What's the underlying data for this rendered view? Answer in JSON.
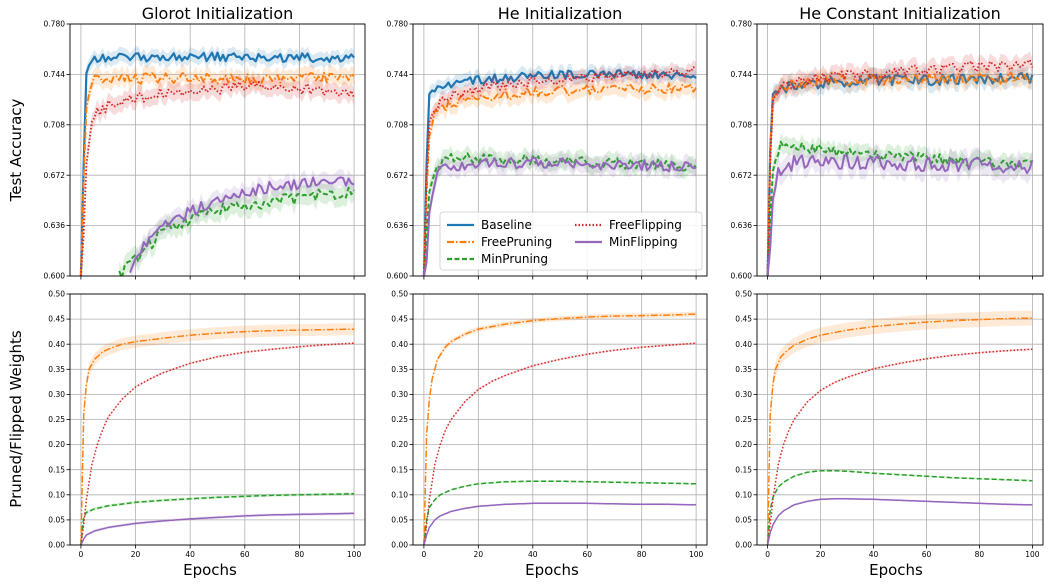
{
  "figure": {
    "xlabel": "Epochs",
    "ylabel_top": "Test Accuracy",
    "ylabel_bottom": "Pruned/Flipped Weights"
  },
  "legend": {
    "placement": "He Initialization top panel, lower-center",
    "entries": [
      {
        "name": "Baseline",
        "color": "#1f77b4",
        "style": "solid"
      },
      {
        "name": "FreePruning",
        "color": "#ff7f0e",
        "style": "dashdot"
      },
      {
        "name": "MinPruning",
        "color": "#2ca02c",
        "style": "dashed"
      },
      {
        "name": "FreeFlipping",
        "color": "#d62728",
        "style": "dotted"
      },
      {
        "name": "MinFlipping",
        "color": "#9467bd",
        "style": "solid"
      }
    ]
  },
  "chart_data": [
    {
      "type": "line",
      "panel": "top-left",
      "title": "Glorot Initialization",
      "xlim": [
        -4,
        104
      ],
      "ylim": [
        0.6,
        0.78
      ],
      "xticks": [
        "0",
        "20",
        "40",
        "60",
        "80",
        "100"
      ],
      "yticks": [
        "0.600",
        "0.636",
        "0.672",
        "0.708",
        "0.744",
        "0.780"
      ],
      "grid": true,
      "series": [
        {
          "name": "Baseline",
          "x": [
            0,
            1,
            2,
            4,
            10,
            20,
            40,
            60,
            80,
            100
          ],
          "y": [
            0.6,
            0.68,
            0.745,
            0.756,
            0.756,
            0.756,
            0.757,
            0.756,
            0.756,
            0.755
          ],
          "band": 0.005
        },
        {
          "name": "FreePruning",
          "x": [
            0,
            1,
            2,
            4,
            10,
            20,
            40,
            60,
            80,
            100
          ],
          "y": [
            0.6,
            0.67,
            0.72,
            0.74,
            0.741,
            0.741,
            0.741,
            0.741,
            0.741,
            0.742
          ],
          "band": 0.006
        },
        {
          "name": "MinPruning",
          "x": [
            14,
            18,
            22,
            30,
            40,
            50,
            60,
            70,
            80,
            90,
            100
          ],
          "y": [
            0.6,
            0.608,
            0.616,
            0.632,
            0.641,
            0.648,
            0.651,
            0.653,
            0.656,
            0.658,
            0.66
          ],
          "band": 0.007
        },
        {
          "name": "FreeFlipping",
          "x": [
            0,
            1,
            2,
            4,
            6,
            10,
            20,
            30,
            40,
            50,
            60,
            70,
            80,
            90,
            100
          ],
          "y": [
            0.6,
            0.63,
            0.68,
            0.71,
            0.717,
            0.722,
            0.727,
            0.731,
            0.733,
            0.734,
            0.735,
            0.735,
            0.734,
            0.732,
            0.731
          ],
          "band": 0.006
        },
        {
          "name": "MinFlipping",
          "x": [
            18,
            22,
            26,
            30,
            40,
            50,
            60,
            70,
            80,
            90,
            100
          ],
          "y": [
            0.605,
            0.618,
            0.628,
            0.636,
            0.646,
            0.654,
            0.66,
            0.664,
            0.666,
            0.667,
            0.668
          ],
          "band": 0.006
        }
      ]
    },
    {
      "type": "line",
      "panel": "top-middle",
      "title": "He Initialization",
      "xlim": [
        -4,
        104
      ],
      "ylim": [
        0.6,
        0.78
      ],
      "xticks": [
        "0",
        "20",
        "40",
        "60",
        "80",
        "100"
      ],
      "yticks": [
        "0.600",
        "0.636",
        "0.672",
        "0.708",
        "0.744",
        "0.780"
      ],
      "grid": true,
      "series": [
        {
          "name": "Baseline",
          "x": [
            0,
            1,
            2,
            4,
            10,
            20,
            40,
            60,
            80,
            100
          ],
          "y": [
            0.6,
            0.68,
            0.73,
            0.735,
            0.737,
            0.74,
            0.743,
            0.744,
            0.744,
            0.744
          ],
          "band": 0.005
        },
        {
          "name": "FreePruning",
          "x": [
            0,
            1,
            2,
            4,
            10,
            20,
            40,
            60,
            80,
            100
          ],
          "y": [
            0.6,
            0.66,
            0.7,
            0.716,
            0.724,
            0.728,
            0.731,
            0.733,
            0.734,
            0.733
          ],
          "band": 0.006
        },
        {
          "name": "MinPruning",
          "x": [
            0,
            1,
            2,
            4,
            6,
            10,
            20,
            40,
            60,
            80,
            100
          ],
          "y": [
            0.6,
            0.63,
            0.66,
            0.675,
            0.68,
            0.685,
            0.684,
            0.683,
            0.681,
            0.68,
            0.678
          ],
          "band": 0.006
        },
        {
          "name": "FreeFlipping",
          "x": [
            0,
            1,
            2,
            4,
            10,
            20,
            40,
            60,
            80,
            100
          ],
          "y": [
            0.6,
            0.67,
            0.71,
            0.72,
            0.729,
            0.734,
            0.739,
            0.742,
            0.744,
            0.746
          ],
          "band": 0.005
        },
        {
          "name": "MinFlipping",
          "x": [
            0,
            1,
            2,
            4,
            6,
            10,
            20,
            40,
            60,
            80,
            100
          ],
          "y": [
            0.6,
            0.61,
            0.645,
            0.668,
            0.675,
            0.678,
            0.68,
            0.681,
            0.68,
            0.679,
            0.678
          ],
          "band": 0.006
        }
      ]
    },
    {
      "type": "line",
      "panel": "top-right",
      "title": "He Constant Initialization",
      "xlim": [
        -4,
        104
      ],
      "ylim": [
        0.6,
        0.78
      ],
      "xticks": [
        "0",
        "20",
        "40",
        "60",
        "80",
        "100"
      ],
      "yticks": [
        "0.600",
        "0.636",
        "0.672",
        "0.708",
        "0.744",
        "0.780"
      ],
      "grid": true,
      "series": [
        {
          "name": "Baseline",
          "x": [
            0,
            1,
            2,
            4,
            10,
            20,
            40,
            60,
            80,
            100
          ],
          "y": [
            0.6,
            0.69,
            0.73,
            0.734,
            0.736,
            0.738,
            0.74,
            0.74,
            0.741,
            0.741
          ],
          "band": 0.006
        },
        {
          "name": "FreePruning",
          "x": [
            0,
            1,
            2,
            4,
            10,
            20,
            40,
            60,
            80,
            100
          ],
          "y": [
            0.6,
            0.69,
            0.727,
            0.733,
            0.737,
            0.739,
            0.74,
            0.741,
            0.741,
            0.741
          ],
          "band": 0.006
        },
        {
          "name": "MinPruning",
          "x": [
            0,
            1,
            2,
            4,
            6,
            10,
            20,
            40,
            60,
            80,
            100
          ],
          "y": [
            0.6,
            0.64,
            0.675,
            0.69,
            0.694,
            0.693,
            0.69,
            0.687,
            0.684,
            0.681,
            0.679
          ],
          "band": 0.006
        },
        {
          "name": "FreeFlipping",
          "x": [
            0,
            1,
            2,
            4,
            10,
            20,
            40,
            60,
            80,
            100
          ],
          "y": [
            0.6,
            0.68,
            0.725,
            0.734,
            0.738,
            0.742,
            0.745,
            0.748,
            0.75,
            0.751
          ],
          "band": 0.006
        },
        {
          "name": "MinFlipping",
          "x": [
            0,
            1,
            2,
            4,
            6,
            10,
            20,
            40,
            60,
            80,
            100
          ],
          "y": [
            0.6,
            0.62,
            0.655,
            0.672,
            0.678,
            0.681,
            0.682,
            0.681,
            0.68,
            0.679,
            0.678
          ],
          "band": 0.008
        }
      ]
    },
    {
      "type": "line",
      "panel": "bottom-left",
      "xlim": [
        -4,
        104
      ],
      "ylim": [
        0,
        0.5
      ],
      "xticks": [
        "0",
        "20",
        "40",
        "60",
        "80",
        "100"
      ],
      "yticks": [
        "0.00",
        "0.05",
        "0.10",
        "0.15",
        "0.20",
        "0.25",
        "0.30",
        "0.35",
        "0.40",
        "0.45",
        "0.50"
      ],
      "grid": true,
      "series": [
        {
          "name": "FreePruning",
          "x": [
            0,
            1,
            2,
            3,
            5,
            8,
            10,
            15,
            20,
            30,
            40,
            50,
            60,
            70,
            80,
            90,
            100
          ],
          "y": [
            0,
            0.26,
            0.32,
            0.35,
            0.37,
            0.385,
            0.39,
            0.4,
            0.405,
            0.412,
            0.418,
            0.422,
            0.425,
            0.427,
            0.428,
            0.429,
            0.43
          ],
          "band": 0.012
        },
        {
          "name": "MinPruning",
          "x": [
            0,
            1,
            2,
            5,
            10,
            20,
            30,
            40,
            50,
            60,
            70,
            80,
            90,
            100
          ],
          "y": [
            0,
            0.055,
            0.065,
            0.072,
            0.078,
            0.085,
            0.089,
            0.092,
            0.095,
            0.097,
            0.099,
            0.1,
            0.101,
            0.102
          ],
          "band": 0.003
        },
        {
          "name": "FreeFlipping",
          "x": [
            0,
            1,
            2,
            4,
            6,
            8,
            10,
            15,
            20,
            25,
            30,
            40,
            50,
            60,
            70,
            80,
            90,
            100
          ],
          "y": [
            0,
            0.04,
            0.09,
            0.16,
            0.2,
            0.23,
            0.255,
            0.29,
            0.315,
            0.33,
            0.343,
            0.362,
            0.375,
            0.384,
            0.39,
            0.395,
            0.399,
            0.402
          ],
          "band": 0.002
        },
        {
          "name": "MinFlipping",
          "x": [
            0,
            1,
            2,
            5,
            10,
            20,
            30,
            40,
            50,
            60,
            70,
            80,
            90,
            100
          ],
          "y": [
            0,
            0.012,
            0.02,
            0.028,
            0.035,
            0.043,
            0.048,
            0.052,
            0.055,
            0.058,
            0.06,
            0.061,
            0.062,
            0.063
          ],
          "band": 0.003
        }
      ]
    },
    {
      "type": "line",
      "panel": "bottom-middle",
      "xlim": [
        -4,
        104
      ],
      "ylim": [
        0,
        0.5
      ],
      "xticks": [
        "0",
        "20",
        "40",
        "60",
        "80",
        "100"
      ],
      "yticks": [
        "0.00",
        "0.05",
        "0.10",
        "0.15",
        "0.20",
        "0.25",
        "0.30",
        "0.35",
        "0.40",
        "0.45",
        "0.50"
      ],
      "grid": true,
      "series": [
        {
          "name": "FreePruning",
          "x": [
            0,
            1,
            2,
            3,
            5,
            8,
            10,
            15,
            20,
            30,
            40,
            50,
            60,
            70,
            80,
            90,
            100
          ],
          "y": [
            0,
            0.22,
            0.29,
            0.33,
            0.37,
            0.395,
            0.405,
            0.42,
            0.43,
            0.44,
            0.447,
            0.451,
            0.454,
            0.456,
            0.457,
            0.458,
            0.46
          ],
          "band": 0.005
        },
        {
          "name": "MinPruning",
          "x": [
            0,
            1,
            2,
            4,
            6,
            10,
            15,
            20,
            30,
            40,
            50,
            60,
            70,
            80,
            90,
            100
          ],
          "y": [
            0,
            0.05,
            0.075,
            0.09,
            0.1,
            0.11,
            0.117,
            0.122,
            0.126,
            0.127,
            0.127,
            0.126,
            0.125,
            0.124,
            0.123,
            0.122
          ],
          "band": 0.002
        },
        {
          "name": "FreeFlipping",
          "x": [
            0,
            1,
            2,
            4,
            6,
            8,
            10,
            15,
            20,
            25,
            30,
            40,
            50,
            60,
            70,
            80,
            90,
            100
          ],
          "y": [
            0,
            0.04,
            0.09,
            0.16,
            0.2,
            0.23,
            0.25,
            0.285,
            0.31,
            0.326,
            0.338,
            0.357,
            0.37,
            0.38,
            0.388,
            0.394,
            0.398,
            0.402
          ],
          "band": 0.002
        },
        {
          "name": "MinFlipping",
          "x": [
            0,
            1,
            2,
            4,
            6,
            10,
            15,
            20,
            30,
            40,
            50,
            60,
            70,
            80,
            90,
            100
          ],
          "y": [
            0,
            0.02,
            0.035,
            0.05,
            0.058,
            0.067,
            0.073,
            0.077,
            0.081,
            0.083,
            0.083,
            0.083,
            0.082,
            0.081,
            0.081,
            0.08
          ],
          "band": 0.002
        }
      ]
    },
    {
      "type": "line",
      "panel": "bottom-right",
      "xlim": [
        -4,
        104
      ],
      "ylim": [
        0,
        0.5
      ],
      "xticks": [
        "0",
        "20",
        "40",
        "60",
        "80",
        "100"
      ],
      "yticks": [
        "0.00",
        "0.05",
        "0.10",
        "0.15",
        "0.20",
        "0.25",
        "0.30",
        "0.35",
        "0.40",
        "0.45",
        "0.50"
      ],
      "grid": true,
      "series": [
        {
          "name": "FreePruning",
          "x": [
            0,
            1,
            2,
            3,
            5,
            8,
            10,
            15,
            20,
            30,
            40,
            50,
            60,
            70,
            80,
            90,
            100
          ],
          "y": [
            0,
            0.26,
            0.32,
            0.35,
            0.375,
            0.39,
            0.398,
            0.41,
            0.418,
            0.428,
            0.435,
            0.44,
            0.444,
            0.447,
            0.449,
            0.451,
            0.452
          ],
          "band": 0.015
        },
        {
          "name": "MinPruning",
          "x": [
            0,
            1,
            2,
            4,
            6,
            10,
            15,
            20,
            25,
            30,
            40,
            50,
            60,
            70,
            80,
            90,
            100
          ],
          "y": [
            0,
            0.07,
            0.095,
            0.115,
            0.125,
            0.137,
            0.145,
            0.148,
            0.148,
            0.147,
            0.143,
            0.14,
            0.137,
            0.134,
            0.132,
            0.13,
            0.128
          ],
          "band": 0.002
        },
        {
          "name": "FreeFlipping",
          "x": [
            0,
            1,
            2,
            4,
            6,
            8,
            10,
            15,
            20,
            25,
            30,
            40,
            50,
            60,
            70,
            80,
            90,
            100
          ],
          "y": [
            0,
            0.04,
            0.09,
            0.16,
            0.2,
            0.228,
            0.25,
            0.285,
            0.308,
            0.323,
            0.334,
            0.351,
            0.362,
            0.371,
            0.378,
            0.383,
            0.387,
            0.39
          ],
          "band": 0.002
        },
        {
          "name": "MinFlipping",
          "x": [
            0,
            1,
            2,
            4,
            6,
            10,
            15,
            20,
            25,
            30,
            40,
            50,
            60,
            70,
            80,
            90,
            100
          ],
          "y": [
            0,
            0.025,
            0.04,
            0.058,
            0.068,
            0.08,
            0.087,
            0.091,
            0.092,
            0.092,
            0.091,
            0.089,
            0.087,
            0.085,
            0.083,
            0.081,
            0.08
          ],
          "band": 0.002
        }
      ]
    }
  ]
}
